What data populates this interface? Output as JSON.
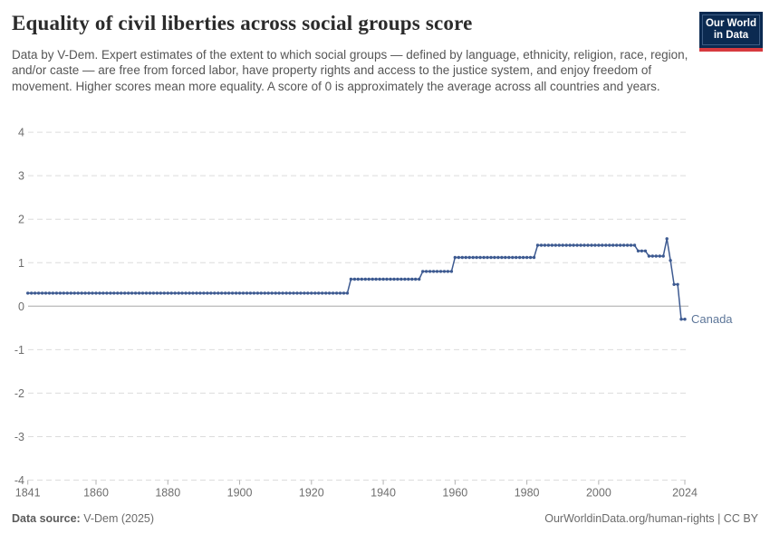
{
  "header": {
    "title": "Equality of civil liberties across social groups score",
    "subtitle": "Data by V-Dem. Expert estimates of the extent to which social groups — defined by language, ethnicity, religion, race, region, and/or caste — are free from forced labor, have property rights and access to the justice system, and enjoy freedom of movement. Higher scores mean more equality. A score of 0 is approximately the average across all countries and years.",
    "logo": {
      "line1": "Our World",
      "line2": "in Data",
      "bg_color": "#0b2a51",
      "stripe_color": "#d73a3f"
    }
  },
  "footer": {
    "source_label": "Data source:",
    "source_value": " V-Dem (2025)",
    "right_text": "OurWorldinData.org/human-rights | CC BY"
  },
  "chart_data": {
    "type": "line",
    "title": "Equality of civil liberties across social groups score",
    "entity": "Canada",
    "xlabel": "",
    "ylabel": "",
    "xlim": [
      1841,
      2024
    ],
    "ylim": [
      -4,
      4
    ],
    "grid": true,
    "x_ticks": [
      1841,
      1860,
      1880,
      1900,
      1920,
      1940,
      1960,
      1980,
      2000,
      2024
    ],
    "y_ticks": [
      4,
      3,
      2,
      1,
      0,
      -1,
      -2,
      -3,
      -4
    ],
    "legend": "end-of-line entity label",
    "line_color": "#3d5a91",
    "entity_label_color": "#5d7699",
    "grid_color": "#dcdcdc",
    "zero_line_color": "#a8a8a8",
    "tick_label_color": "#6e6e6e",
    "series": [
      {
        "name": "Canada",
        "value_runs_year_start_end_value": [
          [
            1841,
            1930,
            0.3
          ],
          [
            1931,
            1950,
            0.62
          ],
          [
            1951,
            1959,
            0.8
          ],
          [
            1960,
            1982,
            1.12
          ],
          [
            1983,
            2010,
            1.4
          ],
          [
            2011,
            2013,
            1.27
          ],
          [
            2014,
            2018,
            1.15
          ],
          [
            2019,
            2019,
            1.55
          ],
          [
            2020,
            2020,
            1.05
          ],
          [
            2021,
            2022,
            0.5
          ],
          [
            2023,
            2024,
            -0.3
          ]
        ]
      }
    ]
  }
}
